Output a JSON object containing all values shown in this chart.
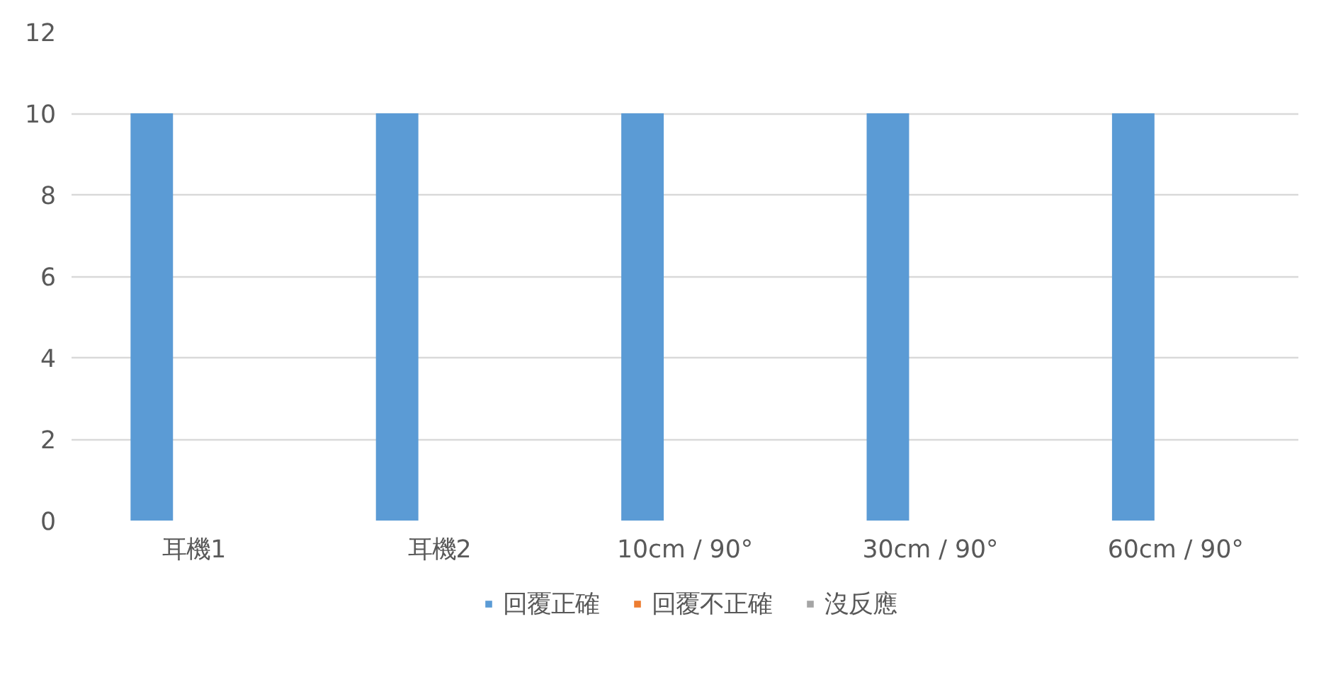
{
  "chart_data": {
    "type": "bar",
    "categories": [
      "耳機1",
      "耳機2",
      "10cm / 90°",
      "30cm / 90°",
      "60cm / 90°"
    ],
    "series": [
      {
        "name": "回覆正確",
        "color": "#5b9bd5",
        "values": [
          10,
          10,
          10,
          10,
          10
        ]
      },
      {
        "name": "回覆不正確",
        "color": "#ed7d31",
        "values": [
          0,
          0,
          0,
          0,
          0
        ]
      },
      {
        "name": "沒反應",
        "color": "#a5a5a5",
        "values": [
          0,
          0,
          0,
          0,
          0
        ]
      }
    ],
    "ylim": [
      0,
      12
    ],
    "yticks": [
      0,
      2,
      4,
      6,
      8,
      10,
      12
    ],
    "grid": "y",
    "legend": "bottom"
  }
}
